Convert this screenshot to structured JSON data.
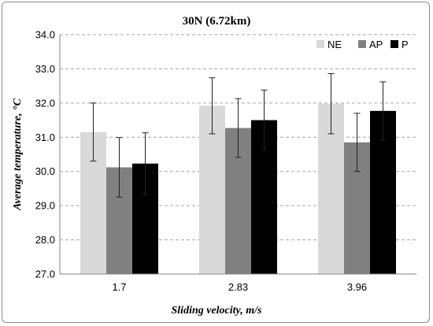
{
  "chart_data": {
    "type": "bar",
    "title": "30N (6.72km)",
    "xlabel": "Sliding velocity, m/s",
    "ylabel": "Average temperature, °C",
    "categories": [
      "1.7",
      "2.83",
      "3.96"
    ],
    "ylim": [
      27.0,
      34.0
    ],
    "yticks": [
      "27.0",
      "28.0",
      "29.0",
      "30.0",
      "31.0",
      "32.0",
      "33.0",
      "34.0"
    ],
    "grid": "horizontal dashed",
    "legend_position": "top-right",
    "series": [
      {
        "name": "NE",
        "color": "#d9d9d9",
        "values": [
          31.15,
          31.92,
          31.98
        ],
        "errors": [
          0.85,
          0.82,
          0.88
        ]
      },
      {
        "name": "AP",
        "color": "#808080",
        "values": [
          30.12,
          31.27,
          30.85
        ],
        "errors": [
          0.87,
          0.86,
          0.85
        ]
      },
      {
        "name": "P",
        "color": "#000000",
        "values": [
          30.23,
          31.5,
          31.77
        ],
        "errors": [
          0.9,
          0.88,
          0.85
        ]
      }
    ]
  }
}
